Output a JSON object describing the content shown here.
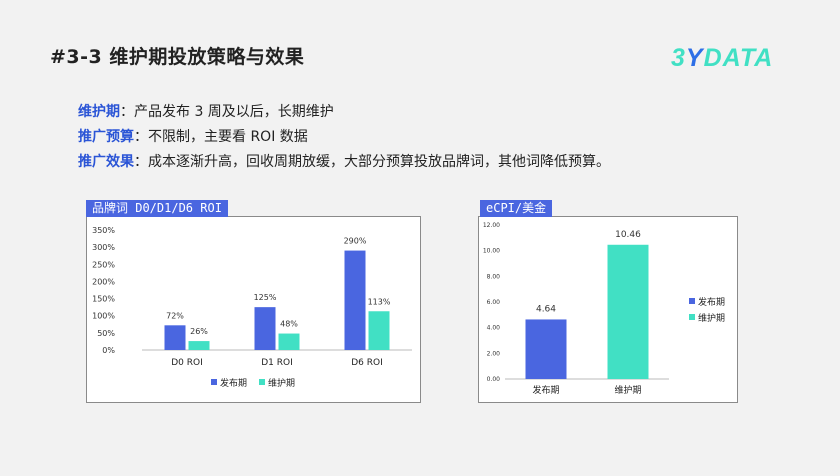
{
  "title": "#3-3 维护期投放策略与效果",
  "logo": {
    "p1": "3",
    "p2": "Y",
    "p3": "DATA"
  },
  "bullets": [
    {
      "key": "维护期",
      "text": "：产品发布 3 周及以后，长期维护"
    },
    {
      "key": "推广预算",
      "text": "：不限制，主要看 ROI 数据"
    },
    {
      "key": "推广效果",
      "text": "：成本逐渐升高，回收周期放缓，大部分预算投放品牌词，其他词降低预算。"
    }
  ],
  "colors": {
    "launch": "#4a66e0",
    "maintain": "#41e0c4"
  },
  "chart_data": [
    {
      "type": "bar",
      "title": "品牌词 D0/D1/D6 ROI",
      "categories": [
        "D0 ROI",
        "D1 ROI",
        "D6 ROI"
      ],
      "series": [
        {
          "name": "发布期",
          "values": [
            72,
            125,
            290
          ],
          "labels": [
            "72%",
            "125%",
            "290%"
          ]
        },
        {
          "name": "维护期",
          "values": [
            26,
            48,
            113
          ],
          "labels": [
            "26%",
            "48%",
            "113%"
          ]
        }
      ],
      "ylim": [
        0,
        350
      ],
      "yticks": [
        "0%",
        "50%",
        "100%",
        "150%",
        "200%",
        "250%",
        "300%",
        "350%"
      ],
      "legend": "bottom"
    },
    {
      "type": "bar",
      "title": "eCPI/美金",
      "categories": [
        "发布期",
        "维护期"
      ],
      "values": [
        4.64,
        10.46
      ],
      "labels": [
        "4.64",
        "10.46"
      ],
      "ylim": [
        0,
        12
      ],
      "yticks": [
        "0.00",
        "2.00",
        "4.00",
        "6.00",
        "8.00",
        "10.00",
        "12.00"
      ],
      "legend_items": [
        "发布期",
        "维护期"
      ],
      "legend": "right"
    }
  ]
}
